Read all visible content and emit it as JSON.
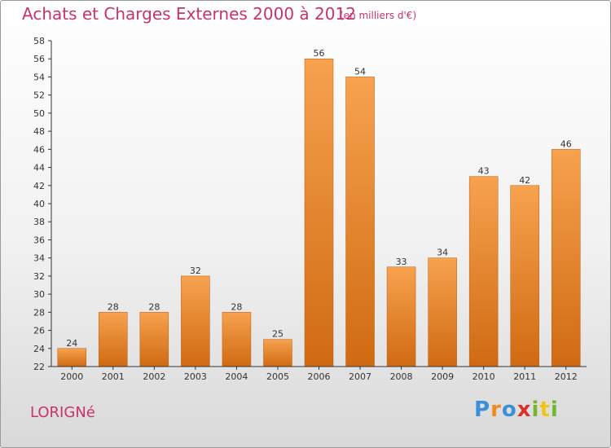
{
  "page": {
    "title": "Achats et Charges Externes 2000 à 2012",
    "subtitle": "(en milliers d'€)",
    "commune": "LORIGNé",
    "logo": {
      "text": "Proxiti",
      "letters": [
        {
          "char": "P",
          "color": "#3a8fd6"
        },
        {
          "char": "r",
          "color": "#f08a1c"
        },
        {
          "char": "o",
          "color": "#3a8fd6"
        },
        {
          "char": "x",
          "color": "#d8312a"
        },
        {
          "char": "i",
          "color": "#74b72e"
        },
        {
          "char": "t",
          "color": "#f0c419"
        },
        {
          "char": "i",
          "color": "#74b72e"
        }
      ]
    }
  },
  "chart_data": {
    "type": "bar",
    "title": "Achats et Charges Externes 2000 à 2012",
    "subtitle": "(en milliers d'€)",
    "categories": [
      "2000",
      "2001",
      "2002",
      "2003",
      "2004",
      "2005",
      "2006",
      "2007",
      "2008",
      "2009",
      "2010",
      "2011",
      "2012"
    ],
    "values": [
      24,
      28,
      28,
      32,
      28,
      25,
      56,
      54,
      33,
      34,
      43,
      42,
      46
    ],
    "ylim": [
      22,
      58
    ],
    "ytick_step": 2,
    "grid": false,
    "bar_color_top": "#f7a24f",
    "bar_color_bottom": "#d06a12",
    "xlabel": "",
    "ylabel": ""
  }
}
